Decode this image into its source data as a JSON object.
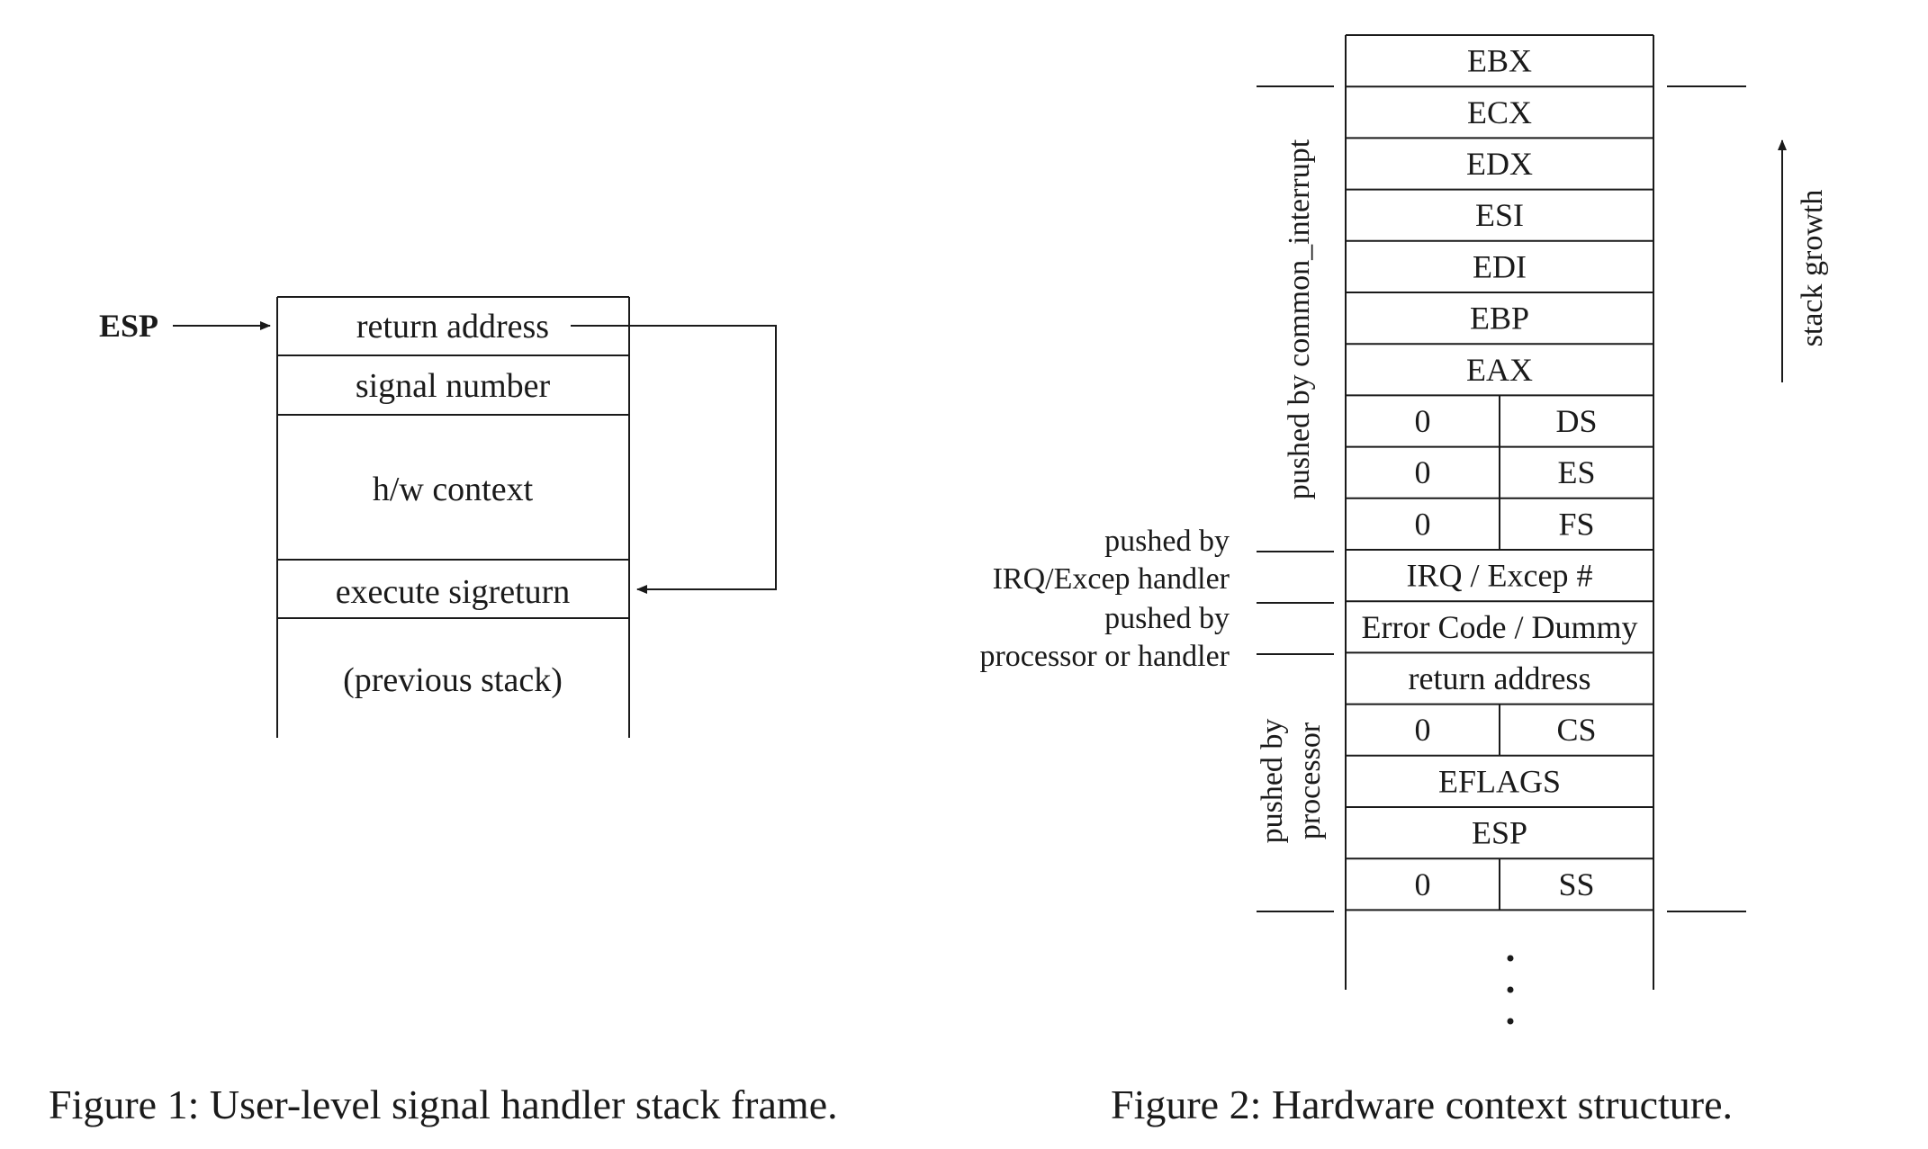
{
  "figure1": {
    "esp_label": "ESP",
    "cells": {
      "return_address": "return address",
      "signal_number": "signal number",
      "hw_context": "h/w context",
      "execute_sigreturn": "execute sigreturn",
      "previous_stack": "(previous stack)"
    },
    "caption": "Figure 1: User-level signal handler stack frame."
  },
  "figure2": {
    "rows": [
      {
        "full": "EBX"
      },
      {
        "full": "ECX"
      },
      {
        "full": "EDX"
      },
      {
        "full": "ESI"
      },
      {
        "full": "EDI"
      },
      {
        "full": "EBP"
      },
      {
        "full": "EAX"
      },
      {
        "left": "0",
        "right": "DS"
      },
      {
        "left": "0",
        "right": "ES"
      },
      {
        "left": "0",
        "right": "FS"
      },
      {
        "full": "IRQ / Excep #"
      },
      {
        "full": "Error Code / Dummy"
      },
      {
        "full": "return address"
      },
      {
        "left": "0",
        "right": "CS"
      },
      {
        "full": "EFLAGS"
      },
      {
        "full": "ESP"
      },
      {
        "left": "0",
        "right": "SS"
      }
    ],
    "annotations": {
      "common_interrupt": "pushed by common_interrupt",
      "irq_line1": "pushed by",
      "irq_line2": "IRQ/Excep handler",
      "proc_handler_line1": "pushed by",
      "proc_handler_line2": "processor or handler",
      "processor_line1": "pushed by",
      "processor_line2": "processor",
      "stack_growth": "stack growth"
    },
    "caption": "Figure 2: Hardware context structure."
  }
}
